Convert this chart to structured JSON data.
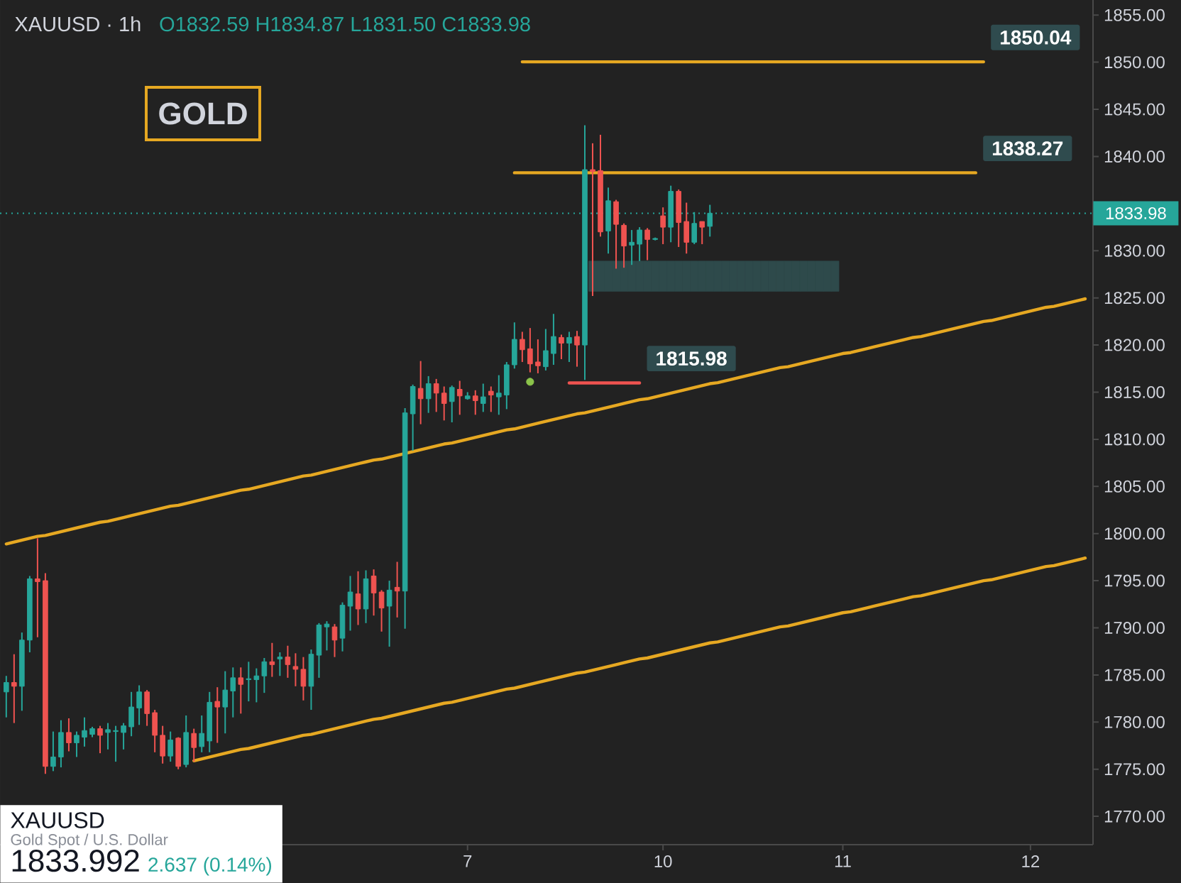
{
  "chart_data": {
    "type": "candlestick",
    "title": "XAUUSD · 1h",
    "subtitle": "O1832.59 H1834.87 L1831.50 C1833.98",
    "categories": [
      null,
      null,
      null,
      null,
      null,
      null,
      null,
      null,
      null,
      null,
      null,
      null,
      null,
      null,
      null,
      null,
      null,
      null,
      null,
      null,
      null,
      null,
      null,
      null,
      null,
      null,
      null,
      null,
      null,
      null,
      null,
      null,
      null,
      null,
      null,
      null,
      null,
      null,
      null,
      null,
      null,
      null,
      null,
      null,
      null,
      null,
      null,
      null,
      null,
      null,
      null,
      null,
      null,
      null,
      null,
      null,
      null,
      null,
      null,
      "7",
      null,
      null,
      null,
      null,
      null,
      null,
      null,
      null,
      null,
      null,
      null,
      null,
      null,
      null,
      null,
      null,
      null,
      null,
      null,
      null,
      null,
      null,
      null,
      null,
      "10",
      null,
      null,
      null,
      null,
      null,
      null,
      null,
      null,
      null,
      null,
      null,
      null,
      null,
      null,
      null,
      null,
      null,
      null,
      null,
      null,
      null,
      null,
      "11",
      null,
      null,
      null,
      null,
      null,
      null,
      null,
      null,
      null,
      null,
      null,
      null,
      null,
      null,
      null,
      null,
      null,
      null,
      null,
      null,
      null,
      null,
      null,
      "12",
      null,
      null,
      null,
      null,
      null,
      null,
      null
    ],
    "ohlc": [
      [
        1783.2,
        1784.9,
        1780.5,
        1784.2
      ],
      [
        1784.2,
        1787.2,
        1779.9,
        1783.8
      ],
      [
        1783.8,
        1789.5,
        1781.2,
        1788.7
      ],
      [
        1788.7,
        1795.5,
        1787.4,
        1795.2
      ],
      [
        1795.2,
        1799.5,
        1789.0,
        1794.9
      ],
      [
        1795.0,
        1795.8,
        1774.5,
        1775.3
      ],
      [
        1775.3,
        1779.0,
        1774.8,
        1776.3
      ],
      [
        1776.3,
        1780.2,
        1775.2,
        1778.9
      ],
      [
        1778.9,
        1780.4,
        1776.9,
        1777.8
      ],
      [
        1777.8,
        1779.0,
        1776.3,
        1778.6
      ],
      [
        1778.4,
        1780.5,
        1777.4,
        1779.1
      ],
      [
        1778.7,
        1779.5,
        1778.4,
        1779.3
      ],
      [
        1779.3,
        1779.6,
        1776.7,
        1778.6
      ],
      [
        1778.9,
        1779.9,
        1777.1,
        1779.2
      ],
      [
        1779.0,
        1779.6,
        1775.8,
        1779.1
      ],
      [
        1778.9,
        1779.9,
        1777.1,
        1779.6
      ],
      [
        1779.5,
        1783.2,
        1778.5,
        1781.6
      ],
      [
        1781.5,
        1783.9,
        1779.7,
        1783.2
      ],
      [
        1783.2,
        1783.4,
        1779.6,
        1780.9
      ],
      [
        1781.0,
        1781.3,
        1776.8,
        1778.6
      ],
      [
        1778.6,
        1779.6,
        1775.6,
        1776.4
      ],
      [
        1776.4,
        1779.0,
        1775.8,
        1778.1
      ],
      [
        1778.3,
        1778.4,
        1775.0,
        1775.3
      ],
      [
        1775.5,
        1780.7,
        1775.2,
        1778.9
      ],
      [
        1778.8,
        1779.3,
        1775.8,
        1777.3
      ],
      [
        1777.4,
        1780.7,
        1776.8,
        1778.8
      ],
      [
        1778.0,
        1783.2,
        1776.8,
        1782.1
      ],
      [
        1782.2,
        1783.7,
        1777.8,
        1781.6
      ],
      [
        1781.6,
        1785.4,
        1778.8,
        1783.4
      ],
      [
        1783.3,
        1785.8,
        1780.5,
        1784.7
      ],
      [
        1784.7,
        1785.8,
        1780.9,
        1784.0
      ],
      [
        1784.5,
        1786.4,
        1782.2,
        1784.6
      ],
      [
        1784.5,
        1785.7,
        1782.1,
        1784.9
      ],
      [
        1784.9,
        1786.8,
        1783.1,
        1786.4
      ],
      [
        1786.4,
        1788.4,
        1784.8,
        1786.1
      ],
      [
        1786.7,
        1787.4,
        1784.9,
        1786.9
      ],
      [
        1786.9,
        1788.1,
        1784.7,
        1786.1
      ],
      [
        1785.9,
        1787.3,
        1783.8,
        1785.6
      ],
      [
        1785.6,
        1786.9,
        1782.3,
        1783.8
      ],
      [
        1783.8,
        1787.7,
        1781.3,
        1787.2
      ],
      [
        1787.1,
        1790.5,
        1784.7,
        1790.3
      ],
      [
        1790.1,
        1790.7,
        1787.6,
        1790.4
      ],
      [
        1790.1,
        1790.4,
        1786.9,
        1788.7
      ],
      [
        1788.9,
        1792.7,
        1787.5,
        1792.4
      ],
      [
        1792.3,
        1795.5,
        1789.7,
        1793.8
      ],
      [
        1793.6,
        1796.0,
        1790.3,
        1792.0
      ],
      [
        1792.0,
        1796.1,
        1790.5,
        1795.2
      ],
      [
        1795.5,
        1796.2,
        1791.3,
        1793.7
      ],
      [
        1793.8,
        1794.0,
        1789.6,
        1792.1
      ],
      [
        1792.3,
        1795.0,
        1788.0,
        1794.0
      ],
      [
        1794.3,
        1797.0,
        1791.1,
        1793.9
      ],
      [
        1793.9,
        1813.3,
        1789.9,
        1812.8
      ],
      [
        1812.7,
        1815.8,
        1808.8,
        1815.6
      ],
      [
        1815.4,
        1818.3,
        1811.6,
        1814.3
      ],
      [
        1814.3,
        1816.7,
        1812.8,
        1815.9
      ],
      [
        1815.9,
        1816.4,
        1812.9,
        1814.9
      ],
      [
        1814.9,
        1815.6,
        1812.0,
        1813.8
      ],
      [
        1814.0,
        1815.7,
        1811.8,
        1815.5
      ],
      [
        1815.3,
        1816.2,
        1812.6,
        1814.6
      ],
      [
        1814.3,
        1815.0,
        1814.2,
        1814.6
      ],
      [
        1814.6,
        1815.2,
        1812.6,
        1814.1
      ],
      [
        1813.8,
        1815.9,
        1812.9,
        1814.5
      ],
      [
        1815.1,
        1815.6,
        1812.9,
        1814.7
      ],
      [
        1814.5,
        1816.8,
        1812.6,
        1814.9
      ],
      [
        1814.7,
        1818.2,
        1813.2,
        1817.9
      ],
      [
        1817.9,
        1822.4,
        1817.5,
        1820.6
      ],
      [
        1820.6,
        1821.4,
        1818.2,
        1819.5
      ],
      [
        1819.6,
        1821.8,
        1817.1,
        1818.0
      ],
      [
        1818.2,
        1820.6,
        1817.0,
        1817.8
      ],
      [
        1817.7,
        1821.7,
        1817.3,
        1819.4
      ],
      [
        1819.1,
        1823.3,
        1817.9,
        1820.9
      ],
      [
        1820.8,
        1821.1,
        1818.5,
        1820.2
      ],
      [
        1820.2,
        1821.4,
        1818.2,
        1820.8
      ],
      [
        1820.9,
        1821.5,
        1817.7,
        1820.0
      ],
      [
        1820.0,
        1843.3,
        1816.3,
        1838.6
      ],
      [
        1838.6,
        1841.4,
        1825.2,
        1838.4
      ],
      [
        1838.5,
        1842.3,
        1831.5,
        1832.0
      ],
      [
        1832.1,
        1836.7,
        1829.7,
        1835.3
      ],
      [
        1835.2,
        1835.4,
        1828.1,
        1832.8
      ],
      [
        1832.7,
        1832.9,
        1828.2,
        1830.5
      ],
      [
        1830.6,
        1832.2,
        1828.5,
        1830.9
      ],
      [
        1830.7,
        1832.5,
        1828.9,
        1832.2
      ],
      [
        1832.2,
        1832.4,
        1829.0,
        1831.2
      ],
      [
        1831.2,
        1831.4,
        1831.1,
        1831.3
      ],
      [
        1833.7,
        1834.6,
        1830.7,
        1832.5
      ],
      [
        1832.5,
        1836.9,
        1830.9,
        1836.3
      ],
      [
        1836.3,
        1836.5,
        1830.4,
        1833.0
      ],
      [
        1833.1,
        1835.1,
        1829.7,
        1830.9
      ],
      [
        1830.9,
        1834.1,
        1830.7,
        1832.9
      ],
      [
        1833.1,
        1833.1,
        1830.7,
        1832.5
      ],
      [
        1832.59,
        1834.87,
        1831.5,
        1833.98
      ],
      null,
      null,
      null,
      null,
      null,
      null,
      null,
      null,
      null,
      null,
      null,
      null,
      null,
      null,
      null,
      null,
      null,
      null,
      null,
      null,
      null,
      null,
      null,
      null,
      null,
      null,
      null,
      null,
      null,
      null,
      null,
      null,
      null,
      null,
      null,
      null,
      null,
      null,
      null,
      null,
      null,
      null,
      null,
      null,
      null,
      null,
      null,
      null
    ],
    "colors": [
      "#26a69a",
      "#ef5350",
      "#26a69a",
      "#26a69a",
      "#ef5350",
      "#ef5350",
      "#26a69a",
      "#26a69a",
      "#ef5350",
      "#26a69a",
      "#26a69a",
      "#26a69a",
      "#ef5350",
      "#26a69a",
      "#26a69a",
      "#26a69a",
      "#26a69a",
      "#26a69a",
      "#ef5350",
      "#ef5350",
      "#ef5350",
      "#26a69a",
      "#ef5350",
      "#26a69a",
      "#ef5350",
      "#26a69a",
      "#26a69a",
      "#ef5350",
      "#26a69a",
      "#26a69a",
      "#ef5350",
      "#26a69a",
      "#26a69a",
      "#26a69a",
      "#ef5350",
      "#26a69a",
      "#ef5350",
      "#ef5350",
      "#ef5350",
      "#26a69a",
      "#26a69a",
      "#26a69a",
      "#ef5350",
      "#26a69a",
      "#26a69a",
      "#ef5350",
      "#26a69a",
      "#ef5350",
      "#ef5350",
      "#26a69a",
      "#ef5350",
      "#26a69a",
      "#26a69a",
      "#ef5350",
      "#26a69a",
      "#ef5350",
      "#ef5350",
      "#26a69a",
      "#ef5350",
      "#26a69a",
      "#ef5350",
      "#26a69a",
      "#ef5350",
      "#26a69a",
      "#26a69a",
      "#26a69a",
      "#ef5350",
      "#ef5350",
      "#ef5350",
      "#26a69a",
      "#26a69a",
      "#ef5350",
      "#26a69a",
      "#ef5350",
      "#26a69a",
      "#ef5350",
      "#ef5350",
      "#26a69a",
      "#ef5350",
      "#ef5350",
      "#26a69a",
      "#26a69a",
      "#ef5350",
      "#26a69a",
      "#ef5350",
      "#26a69a",
      "#ef5350",
      "#ef5350",
      "#26a69a",
      "#ef5350",
      "#26a69a",
      null,
      null,
      null,
      null,
      null,
      null,
      null,
      null,
      null,
      null,
      null,
      null,
      null,
      null,
      null,
      null,
      null,
      null,
      null,
      null,
      null,
      null,
      null,
      null,
      null,
      null,
      null,
      null,
      null,
      null,
      null,
      null,
      null,
      null,
      null,
      null,
      null,
      null,
      null,
      null,
      null,
      null,
      null,
      null,
      null,
      null,
      null,
      null
    ],
    "series": [
      {
        "type": "bar",
        "color": "#2e4a4b",
        "values": [
          null,
          null,
          null,
          null,
          null,
          null,
          null,
          null,
          null,
          null,
          null,
          null,
          null,
          null,
          null,
          null,
          null,
          null,
          null,
          null,
          null,
          null,
          null,
          null,
          null,
          null,
          null,
          null,
          null,
          null,
          null,
          null,
          null,
          null,
          null,
          null,
          null,
          null,
          null,
          null,
          null,
          null,
          null,
          null,
          null,
          null,
          null,
          null,
          null,
          null,
          null,
          null,
          null,
          null,
          null,
          null,
          null,
          null,
          null,
          null,
          null,
          null,
          null,
          null,
          null,
          null,
          null,
          null,
          null,
          null,
          null,
          null,
          null,
          null,
          null,
          3.2,
          3.2,
          3.2,
          3.2,
          3.2,
          3.2,
          3.2,
          3.2,
          3.2,
          3.2,
          3.2,
          3.2,
          3.2,
          3.2,
          3.2,
          3.2,
          3.2,
          3.2,
          3.2,
          3.2,
          3.2,
          3.2,
          3.2,
          3.2,
          3.2,
          3.2,
          3.2,
          3.2,
          3.2,
          3.2,
          3.2,
          3.2,
          null,
          null,
          null,
          null,
          null,
          null,
          null,
          null,
          null,
          null,
          null,
          null,
          null,
          null,
          null,
          null,
          null,
          null,
          null,
          null,
          null,
          null,
          null,
          null,
          null,
          null,
          null,
          null,
          null,
          null,
          null,
          null
        ],
        "base": [
          null,
          null,
          null,
          null,
          null,
          null,
          null,
          null,
          null,
          null,
          null,
          null,
          null,
          null,
          null,
          null,
          null,
          null,
          null,
          null,
          null,
          null,
          null,
          null,
          null,
          null,
          null,
          null,
          null,
          null,
          null,
          null,
          null,
          null,
          null,
          null,
          null,
          null,
          null,
          null,
          null,
          null,
          null,
          null,
          null,
          null,
          null,
          null,
          null,
          null,
          null,
          null,
          null,
          null,
          null,
          null,
          null,
          null,
          null,
          null,
          null,
          null,
          null,
          null,
          null,
          null,
          null,
          null,
          null,
          null,
          null,
          null,
          null,
          null,
          null,
          1825.7,
          1825.7,
          1825.7,
          1825.7,
          1825.7,
          1825.7,
          1825.7,
          1825.7,
          1825.7,
          1825.7,
          1825.7,
          1825.7,
          1825.7,
          1825.7,
          1825.7,
          1825.7,
          1825.7,
          1825.7,
          1825.7,
          1825.7,
          1825.7,
          1825.7,
          1825.7,
          1825.7,
          1825.7,
          1825.7,
          1825.7,
          1825.7,
          1825.7,
          1825.7,
          1825.7,
          1825.7,
          null,
          null,
          null,
          null,
          null,
          null,
          null,
          null,
          null,
          null,
          null,
          null,
          null,
          null,
          null,
          null,
          null,
          null,
          null,
          null,
          null,
          null,
          null,
          null,
          null,
          null,
          null,
          null,
          null,
          null,
          null,
          null
        ]
      },
      {
        "type": "line",
        "color": "#e6a822",
        "values": [
          1798.9,
          1799.1,
          1799.3,
          1799.5,
          1799.7,
          1799.8,
          1800.0,
          1800.2,
          1800.4,
          1800.6,
          1800.8,
          1801.0,
          1801.2,
          1801.3,
          1801.5,
          1801.7,
          1801.9,
          1802.1,
          1802.3,
          1802.5,
          1802.7,
          1802.9,
          1803.0,
          1803.2,
          1803.4,
          1803.6,
          1803.8,
          1804.0,
          1804.2,
          1804.4,
          1804.6,
          1804.7,
          1804.9,
          1805.1,
          1805.3,
          1805.5,
          1805.7,
          1805.9,
          1806.1,
          1806.2,
          1806.4,
          1806.6,
          1806.8,
          1807.0,
          1807.2,
          1807.4,
          1807.6,
          1807.8,
          1807.9,
          1808.1,
          1808.3,
          1808.5,
          1808.7,
          1808.9,
          1809.1,
          1809.3,
          1809.5,
          1809.6,
          1809.8,
          1810.0,
          1810.2,
          1810.4,
          1810.6,
          1810.8,
          1811.0,
          1811.1,
          1811.3,
          1811.5,
          1811.7,
          1811.9,
          1812.1,
          1812.3,
          1812.5,
          1812.7,
          1812.8,
          1813.0,
          1813.2,
          1813.4,
          1813.6,
          1813.8,
          1814.0,
          1814.2,
          1814.3,
          1814.5,
          1814.7,
          1814.9,
          1815.1,
          1815.3,
          1815.5,
          1815.7,
          1815.9,
          1816.0,
          1816.2,
          1816.4,
          1816.6,
          1816.8,
          1817.0,
          1817.2,
          1817.4,
          1817.6,
          1817.7,
          1817.9,
          1818.1,
          1818.3,
          1818.5,
          1818.7,
          1818.9,
          1819.1,
          1819.2,
          1819.4,
          1819.6,
          1819.8,
          1820.0,
          1820.2,
          1820.4,
          1820.6,
          1820.8,
          1820.9,
          1821.1,
          1821.3,
          1821.5,
          1821.7,
          1821.9,
          1822.1,
          1822.3,
          1822.5,
          1822.6,
          1822.8,
          1823.0,
          1823.2,
          1823.4,
          1823.6,
          1823.8,
          1824.0,
          1824.1,
          1824.3,
          1824.5,
          1824.7,
          1824.9
        ]
      },
      {
        "type": "line",
        "color": "#e6a822",
        "values": [
          null,
          null,
          null,
          null,
          null,
          null,
          null,
          null,
          null,
          null,
          null,
          null,
          null,
          null,
          null,
          null,
          null,
          null,
          null,
          null,
          null,
          null,
          null,
          null,
          1775.9,
          1776.1,
          1776.3,
          1776.5,
          1776.7,
          1776.9,
          1777.1,
          1777.2,
          1777.4,
          1777.6,
          1777.8,
          1778.0,
          1778.2,
          1778.4,
          1778.6,
          1778.7,
          1778.9,
          1779.1,
          1779.3,
          1779.5,
          1779.7,
          1779.9,
          1780.1,
          1780.3,
          1780.4,
          1780.6,
          1780.8,
          1781.0,
          1781.2,
          1781.4,
          1781.6,
          1781.8,
          1782.0,
          1782.1,
          1782.3,
          1782.5,
          1782.7,
          1782.9,
          1783.1,
          1783.3,
          1783.5,
          1783.6,
          1783.8,
          1784.0,
          1784.2,
          1784.4,
          1784.6,
          1784.8,
          1785.0,
          1785.2,
          1785.3,
          1785.5,
          1785.7,
          1785.9,
          1786.1,
          1786.3,
          1786.5,
          1786.7,
          1786.8,
          1787.0,
          1787.2,
          1787.4,
          1787.6,
          1787.8,
          1788.0,
          1788.2,
          1788.4,
          1788.5,
          1788.7,
          1788.9,
          1789.1,
          1789.3,
          1789.5,
          1789.7,
          1789.9,
          1790.1,
          1790.2,
          1790.4,
          1790.6,
          1790.8,
          1791.0,
          1791.2,
          1791.4,
          1791.6,
          1791.7,
          1791.9,
          1792.1,
          1792.3,
          1792.5,
          1792.7,
          1792.9,
          1793.1,
          1793.3,
          1793.4,
          1793.6,
          1793.8,
          1794.0,
          1794.2,
          1794.4,
          1794.6,
          1794.8,
          1795.0,
          1795.1,
          1795.3,
          1795.5,
          1795.7,
          1795.9,
          1796.1,
          1796.3,
          1796.5,
          1796.6,
          1796.8,
          1797.0,
          1797.2,
          1797.4
        ]
      },
      {
        "type": "line",
        "color": "#e6a822",
        "name": "1850.04",
        "values": [
          null,
          null,
          null,
          null,
          null,
          null,
          null,
          null,
          null,
          null,
          null,
          null,
          null,
          null,
          null,
          null,
          null,
          null,
          null,
          null,
          null,
          null,
          null,
          null,
          null,
          null,
          null,
          null,
          null,
          null,
          null,
          null,
          null,
          null,
          null,
          null,
          null,
          null,
          null,
          null,
          null,
          null,
          null,
          null,
          null,
          null,
          null,
          null,
          null,
          null,
          null,
          null,
          null,
          null,
          null,
          null,
          null,
          null,
          null,
          null,
          null,
          null,
          null,
          null,
          null,
          null,
          1850.04,
          1850.04,
          1850.04,
          1850.04,
          1850.04,
          1850.04,
          1850.04,
          1850.04,
          1850.04,
          1850.04,
          1850.04,
          1850.04,
          1850.04,
          1850.04,
          1850.04,
          1850.04,
          1850.04,
          1850.04,
          1850.04,
          1850.04,
          1850.04,
          1850.04,
          1850.04,
          1850.04,
          1850.04,
          1850.04,
          1850.04,
          1850.04,
          1850.04,
          1850.04,
          1850.04,
          1850.04,
          1850.04,
          1850.04,
          1850.04,
          1850.04,
          1850.04,
          1850.04,
          1850.04,
          1850.04,
          1850.04,
          1850.04,
          1850.04,
          1850.04,
          1850.04,
          1850.04,
          1850.04,
          1850.04,
          1850.04,
          1850.04,
          1850.04,
          1850.04,
          1850.04,
          1850.04,
          1850.04,
          1850.04,
          1850.04,
          1850.04,
          1850.04,
          1850.04,
          null,
          null,
          null,
          null,
          null,
          null,
          null,
          null,
          null,
          null,
          null,
          null,
          null
        ]
      },
      {
        "type": "line",
        "color": "#e6a822",
        "name": "1838.27",
        "values": [
          null,
          null,
          null,
          null,
          null,
          null,
          null,
          null,
          null,
          null,
          null,
          null,
          null,
          null,
          null,
          null,
          null,
          null,
          null,
          null,
          null,
          null,
          null,
          null,
          null,
          null,
          null,
          null,
          null,
          null,
          null,
          null,
          null,
          null,
          null,
          null,
          null,
          null,
          null,
          null,
          null,
          null,
          null,
          null,
          null,
          null,
          null,
          null,
          null,
          null,
          null,
          null,
          null,
          null,
          null,
          null,
          null,
          null,
          null,
          null,
          null,
          null,
          null,
          null,
          null,
          1838.27,
          1838.27,
          1838.27,
          1838.27,
          1838.27,
          1838.27,
          1838.27,
          1838.27,
          1838.27,
          1838.27,
          1838.27,
          1838.27,
          1838.27,
          1838.27,
          1838.27,
          1838.27,
          1838.27,
          1838.27,
          1838.27,
          1838.27,
          1838.27,
          1838.27,
          1838.27,
          1838.27,
          1838.27,
          1838.27,
          1838.27,
          1838.27,
          1838.27,
          1838.27,
          1838.27,
          1838.27,
          1838.27,
          1838.27,
          1838.27,
          1838.27,
          1838.27,
          1838.27,
          1838.27,
          1838.27,
          1838.27,
          1838.27,
          1838.27,
          1838.27,
          1838.27,
          1838.27,
          1838.27,
          1838.27,
          1838.27,
          1838.27,
          1838.27,
          1838.27,
          1838.27,
          1838.27,
          1838.27,
          1838.27,
          1838.27,
          1838.27,
          1838.27,
          1838.27,
          null,
          null,
          null,
          null,
          null,
          null,
          null,
          null,
          null,
          null,
          null,
          null,
          null,
          null
        ]
      },
      {
        "type": "line",
        "color": "#ef5350",
        "name": "1815.98",
        "values": [
          null,
          null,
          null,
          null,
          null,
          null,
          null,
          null,
          null,
          null,
          null,
          null,
          null,
          null,
          null,
          null,
          null,
          null,
          null,
          null,
          null,
          null,
          null,
          null,
          null,
          null,
          null,
          null,
          null,
          null,
          null,
          null,
          null,
          null,
          null,
          null,
          null,
          null,
          null,
          null,
          null,
          null,
          null,
          null,
          null,
          null,
          null,
          null,
          null,
          null,
          null,
          null,
          null,
          null,
          null,
          null,
          null,
          null,
          null,
          null,
          null,
          null,
          null,
          null,
          null,
          null,
          null,
          null,
          null,
          null,
          null,
          null,
          1815.98,
          1815.98,
          1815.98,
          1815.98,
          1815.98,
          1815.98,
          1815.98,
          1815.98,
          1815.98,
          1815.98,
          null,
          null,
          null,
          null,
          null,
          null,
          null,
          null,
          null,
          null,
          null,
          null,
          null,
          null,
          null,
          null,
          null,
          null,
          null,
          null,
          null,
          null,
          null,
          null,
          null,
          null,
          null,
          null,
          null,
          null,
          null,
          null,
          null,
          null,
          null,
          null,
          null,
          null,
          null,
          null,
          null,
          null,
          null,
          null,
          null,
          null,
          null,
          null,
          null,
          null,
          null,
          null,
          null,
          null,
          null,
          null,
          null
        ]
      },
      {
        "type": "scatter",
        "color": "#8bc34a",
        "marker": "circle",
        "values": [
          null,
          null,
          null,
          null,
          null,
          null,
          null,
          null,
          null,
          null,
          null,
          null,
          null,
          null,
          null,
          null,
          null,
          null,
          null,
          null,
          null,
          null,
          null,
          null,
          null,
          null,
          null,
          null,
          null,
          null,
          null,
          null,
          null,
          null,
          null,
          null,
          null,
          null,
          null,
          null,
          null,
          null,
          null,
          null,
          null,
          null,
          null,
          null,
          null,
          null,
          null,
          null,
          null,
          null,
          null,
          null,
          null,
          null,
          null,
          null,
          null,
          null,
          null,
          null,
          null,
          null,
          null,
          1816.1,
          null,
          null,
          null,
          null,
          null,
          null,
          null,
          null,
          null,
          null,
          null,
          null,
          null,
          null,
          null,
          null,
          null,
          null,
          null,
          null,
          null,
          null,
          null,
          null,
          null,
          null,
          null,
          null,
          null,
          null,
          null,
          null,
          null,
          null,
          null,
          null,
          null,
          null,
          null,
          null,
          null,
          null,
          null,
          null,
          null,
          null,
          null,
          null,
          null,
          null,
          null,
          null,
          null,
          null,
          null,
          null,
          null,
          null,
          null,
          null,
          null,
          null,
          null,
          null,
          null,
          null,
          null,
          null,
          null,
          null,
          null
        ]
      }
    ],
    "ref_lines": [
      {
        "axis": "y",
        "value": 1833.98,
        "label": "1833.98",
        "color": "#26a69a",
        "line_style": "dotted"
      }
    ],
    "annotations": [
      "GOLD",
      "XAUUSD",
      "Gold Spot / U.S. Dollar",
      "1833.992",
      "2.637 (0.14%)"
    ],
    "ylim": [
      1767,
      1856.6
    ],
    "yticks": [
      {
        "value": 1770,
        "label": "1770.00"
      },
      {
        "value": 1775,
        "label": "1775.00"
      },
      {
        "value": 1780,
        "label": "1780.00"
      },
      {
        "value": 1785,
        "label": "1785.00"
      },
      {
        "value": 1790,
        "label": "1790.00"
      },
      {
        "value": 1795,
        "label": "1795.00"
      },
      {
        "value": 1800,
        "label": "1800.00"
      },
      {
        "value": 1805,
        "label": "1805.00"
      },
      {
        "value": 1810,
        "label": "1810.00"
      },
      {
        "value": 1815,
        "label": "1815.00"
      },
      {
        "value": 1820,
        "label": "1820.00"
      },
      {
        "value": 1825,
        "label": "1825.00"
      },
      {
        "value": 1830,
        "label": "1830.00"
      },
      {
        "value": 1835,
        "label": null
      },
      {
        "value": 1840,
        "label": "1840.00"
      },
      {
        "value": 1845,
        "label": "1845.00"
      },
      {
        "value": 1850,
        "label": "1850.00"
      },
      {
        "value": 1855,
        "label": "1855.00"
      }
    ]
  }
}
